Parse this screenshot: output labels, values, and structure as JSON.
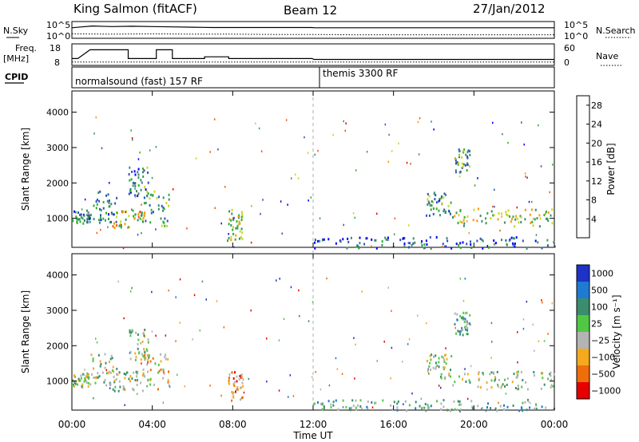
{
  "header": {
    "station": "King Salmon (fitACF)",
    "beam": "Beam 12",
    "date": "27/Jan/2012"
  },
  "panels": {
    "nsky_label": "N.Sky",
    "nsearch_label": "N.Search",
    "freq_label": "Freq.",
    "freq_unit": "[MHz]",
    "nave_label": "Nave",
    "cpid_label": "CPID",
    "nsky_ticks": [
      "10^5",
      "10^0"
    ],
    "nsearch_ticks": [
      "10^5",
      "10^0"
    ],
    "freq_ticks": [
      "18",
      "8"
    ],
    "nave_ticks": [
      "60",
      "0"
    ],
    "cpid_segments": [
      {
        "name": "normalsound (fast) 157 RF",
        "start_hour": 0,
        "end_hour": 12
      },
      {
        "name": "themis 3300 RF",
        "start_hour": 12,
        "end_hour": 24
      }
    ]
  },
  "chart_data": [
    {
      "type": "line",
      "title": "",
      "series": [
        {
          "name": "N.Sky",
          "x": [
            0,
            0.5,
            1,
            2,
            3,
            4,
            5,
            6,
            7,
            8,
            9,
            10,
            11,
            11.9,
            12.1,
            13,
            14,
            16,
            18,
            20,
            22,
            24
          ],
          "y": [
            3.2,
            3.5,
            3.8,
            3.6,
            3.7,
            3.6,
            3.5,
            3.4,
            3.3,
            3.3,
            3.3,
            3.3,
            3.3,
            3.3,
            3.2,
            3.2,
            3.2,
            3.2,
            3.2,
            3.2,
            3.2,
            3.2
          ]
        },
        {
          "name": "N.Search",
          "x": [
            0,
            2,
            4,
            6,
            8,
            10,
            12,
            14,
            16,
            18,
            20,
            22,
            24
          ],
          "y": [
            1.2,
            1.1,
            1.2,
            1.1,
            1.1,
            1.0,
            1.0,
            0.9,
            0.9,
            0.9,
            0.9,
            0.9,
            0.9
          ]
        }
      ],
      "xlim": [
        0,
        24
      ],
      "ylim": [
        0,
        5
      ]
    },
    {
      "type": "line",
      "title": "",
      "series": [
        {
          "name": "Freq.",
          "x": [
            0,
            0.3,
            0.3,
            0.9,
            0.9,
            2.8,
            2.8,
            4.2,
            4.2,
            5.0,
            5.0,
            6.6,
            6.6,
            7.8,
            7.8,
            11.95,
            12.05,
            24
          ],
          "y": [
            11,
            11,
            11,
            16,
            16,
            16,
            11,
            11,
            16,
            16,
            11,
            11,
            12,
            12,
            11,
            11,
            10.5,
            10.5
          ]
        },
        {
          "name": "Nave",
          "x": [
            0,
            12,
            12.05,
            24
          ],
          "y": [
            2,
            2,
            2,
            2
          ]
        }
      ],
      "xlim": [
        0,
        24
      ],
      "ylim": [
        8,
        18
      ]
    },
    {
      "type": "heatmap",
      "title": "",
      "quantity": "power",
      "xlabel": "",
      "ylabel": "Slant Range [km]",
      "xlim": [
        0,
        24
      ],
      "ylim": [
        180,
        4600
      ],
      "yticks": [
        1000,
        2000,
        3000,
        4000
      ],
      "colorbar": {
        "label": "Power [dB]",
        "ticks": [
          4,
          8,
          12,
          16,
          20,
          24,
          28
        ],
        "range": [
          0,
          30
        ],
        "colors": [
          "#0000ff",
          "#2d55b6",
          "#3c8c6e",
          "#2eaf2e",
          "#c8d81e",
          "#f59a14",
          "#f05a0a",
          "#e60000"
        ]
      },
      "features": [
        {
          "x0": 0,
          "x1": 0.9,
          "y0": 850,
          "y1": 1250,
          "level": 0.3
        },
        {
          "x0": 0.9,
          "x1": 2.2,
          "y0": 900,
          "y1": 1800,
          "level": 0.25
        },
        {
          "x0": 2.0,
          "x1": 3.6,
          "y0": 750,
          "y1": 1300,
          "level": 0.55
        },
        {
          "x0": 2.8,
          "x1": 3.8,
          "y0": 1600,
          "y1": 2500,
          "level": 0.3
        },
        {
          "x0": 3.4,
          "x1": 4.8,
          "y0": 800,
          "y1": 1800,
          "level": 0.35
        },
        {
          "x0": 7.7,
          "x1": 8.5,
          "y0": 400,
          "y1": 1300,
          "level": 0.45
        },
        {
          "x0": 17.6,
          "x1": 18.9,
          "y0": 1100,
          "y1": 1800,
          "level": 0.35
        },
        {
          "x0": 18.9,
          "x1": 24.0,
          "y0": 800,
          "y1": 1300,
          "level": 0.5
        },
        {
          "x0": 19.0,
          "x1": 19.8,
          "y0": 2300,
          "y1": 3000,
          "level": 0.35
        },
        {
          "x0": 12.0,
          "x1": 24.0,
          "y0": 180,
          "y1": 500,
          "level": 0.2
        }
      ]
    },
    {
      "type": "heatmap",
      "title": "",
      "quantity": "velocity",
      "xlabel": "Time UT",
      "ylabel": "Slant Range [km]",
      "xlim": [
        0,
        24
      ],
      "ylim": [
        180,
        4600
      ],
      "yticks": [
        1000,
        2000,
        3000,
        4000
      ],
      "xticks": [
        "00:00",
        "04:00",
        "08:00",
        "12:00",
        "16:00",
        "20:00",
        "00:00"
      ],
      "colorbar": {
        "label": "Velocity [m s⁻¹]",
        "ticks": [
          "1000",
          "500",
          "100",
          "25",
          "−25",
          "−100",
          "−500",
          "−1000"
        ],
        "colors": [
          "#1e32c8",
          "#1f7ad2",
          "#3c8c6e",
          "#50c846",
          "#b4b4b4",
          "#f5aa1e",
          "#f06e0a",
          "#e60000"
        ]
      },
      "features": [
        {
          "x0": 0,
          "x1": 0.9,
          "y0": 850,
          "y1": 1250,
          "level": 0.5
        },
        {
          "x0": 0.9,
          "x1": 2.2,
          "y0": 900,
          "y1": 1800,
          "level": 0.5
        },
        {
          "x0": 2.0,
          "x1": 3.6,
          "y0": 750,
          "y1": 1300,
          "level": 0.45
        },
        {
          "x0": 2.8,
          "x1": 3.8,
          "y0": 1600,
          "y1": 2500,
          "level": 0.5
        },
        {
          "x0": 3.4,
          "x1": 4.8,
          "y0": 800,
          "y1": 1800,
          "level": 0.6
        },
        {
          "x0": 7.7,
          "x1": 8.5,
          "y0": 400,
          "y1": 1300,
          "level": 0.75
        },
        {
          "x0": 17.6,
          "x1": 18.9,
          "y0": 1100,
          "y1": 1800,
          "level": 0.5
        },
        {
          "x0": 18.9,
          "x1": 24.0,
          "y0": 800,
          "y1": 1300,
          "level": 0.5
        },
        {
          "x0": 19.0,
          "x1": 19.8,
          "y0": 2300,
          "y1": 3000,
          "level": 0.4
        },
        {
          "x0": 12.0,
          "x1": 24.0,
          "y0": 180,
          "y1": 500,
          "level": 0.4
        }
      ]
    }
  ]
}
